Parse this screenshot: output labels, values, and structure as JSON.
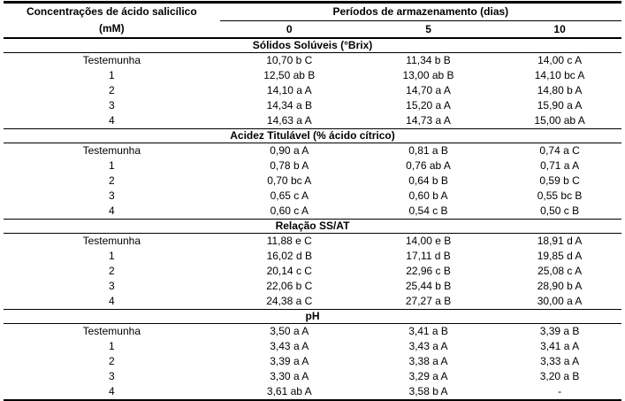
{
  "table": {
    "header": {
      "col1_line1": "Concentrações de ácido salicílico",
      "col1_line2": "(mM)",
      "group_title": "Períodos de armazenamento (dias)",
      "period_labels": [
        "0",
        "5",
        "10"
      ]
    },
    "sections": [
      {
        "title": "Sólidos Solúveis (°Brix)",
        "rows": [
          {
            "label": "Testemunha",
            "values": [
              "10,70 b C",
              "11,34 b B",
              "14,00 c A"
            ]
          },
          {
            "label": "1",
            "values": [
              "12,50 ab B",
              "13,00 ab B",
              "14,10 bc A"
            ]
          },
          {
            "label": "2",
            "values": [
              "14,10 a A",
              "14,70 a A",
              "14,80 b A"
            ]
          },
          {
            "label": "3",
            "values": [
              "14,34 a B",
              "15,20 a A",
              "15,90 a A"
            ]
          },
          {
            "label": "4",
            "values": [
              "14,63 a A",
              "14,73 a A",
              "15,00 ab A"
            ]
          }
        ]
      },
      {
        "title": "Acidez Titulável (% ácido cítrico)",
        "rows": [
          {
            "label": "Testemunha",
            "values": [
              "0,90 a A",
              "0,81 a B",
              "0,74 a C"
            ]
          },
          {
            "label": "1",
            "values": [
              "0,78 b A",
              "0,76 ab A",
              "0,71 a A"
            ]
          },
          {
            "label": "2",
            "values": [
              "0,70 bc A",
              "0,64 b B",
              "0,59 b C"
            ]
          },
          {
            "label": "3",
            "values": [
              "0,65 c A",
              "0,60 b A",
              "0,55 bc B"
            ]
          },
          {
            "label": "4",
            "values": [
              "0,60 c A",
              "0,54 c B",
              "0,50 c B"
            ]
          }
        ]
      },
      {
        "title": "Relação SS/AT",
        "rows": [
          {
            "label": "Testemunha",
            "values": [
              "11,88 e C",
              "14,00 e B",
              "18,91 d A"
            ]
          },
          {
            "label": "1",
            "values": [
              "16,02 d B",
              "17,11 d B",
              "19,85 d A"
            ]
          },
          {
            "label": "2",
            "values": [
              "20,14 c C",
              "22,96 c B",
              "25,08 c A"
            ]
          },
          {
            "label": "3",
            "values": [
              "22,06 b C",
              "25,44 b B",
              "28,90 b A"
            ]
          },
          {
            "label": "4",
            "values": [
              "24,38 a C",
              "27,27 a B",
              "30,00 a A"
            ]
          }
        ]
      },
      {
        "title": "pH",
        "rows": [
          {
            "label": "Testemunha",
            "values": [
              "3,50 a A",
              "3,41 a B",
              "3,39 a B"
            ]
          },
          {
            "label": "1",
            "values": [
              "3,43 a A",
              "3,43 a A",
              "3,41 a A"
            ]
          },
          {
            "label": "2",
            "values": [
              "3,39 a A",
              "3,38 a A",
              "3,33 a A"
            ]
          },
          {
            "label": "3",
            "values": [
              "3,30 a A",
              "3,29 a A",
              "3,20 a B"
            ]
          },
          {
            "label": "4",
            "values": [
              "3,61 ab A",
              "3,58 b A",
              "-"
            ]
          }
        ]
      }
    ]
  }
}
